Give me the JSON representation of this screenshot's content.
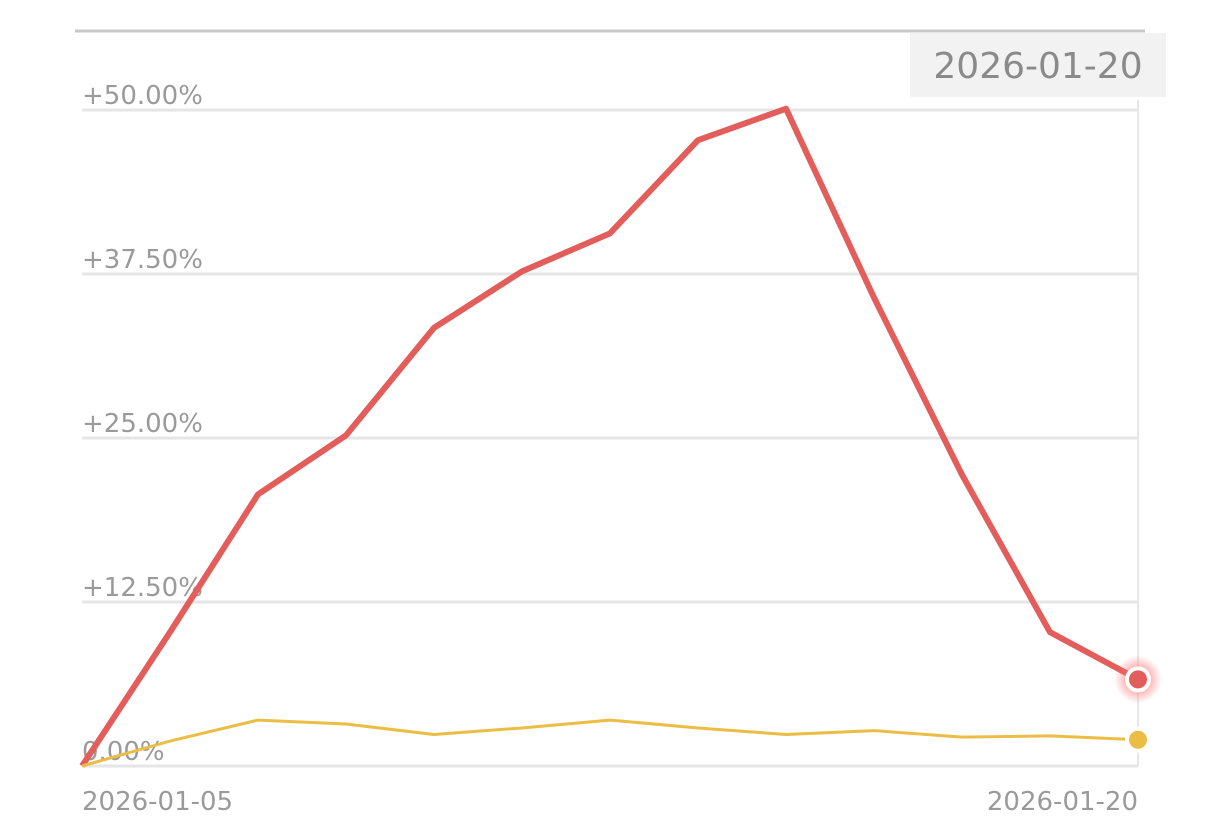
{
  "chart_data": {
    "type": "line",
    "tooltip_label": "2026-01-20",
    "categories": [
      "2026-01-05",
      null,
      null,
      null,
      null,
      null,
      null,
      null,
      null,
      null,
      null,
      null,
      "2026-01-20"
    ],
    "series": [
      {
        "color": "#e35d5b",
        "values": [
          0,
          10.2,
          20.7,
          25.2,
          33.4,
          37.7,
          40.6,
          47.7,
          50.1,
          35.7,
          22.2,
          10.2,
          6.6
        ]
      },
      {
        "color": "#ecbd45",
        "values": [
          0,
          1.9,
          3.5,
          3.2,
          2.4,
          2.9,
          3.5,
          2.9,
          2.4,
          2.7,
          2.2,
          2.3,
          2.0
        ]
      }
    ],
    "ylim": [
      0,
      50
    ],
    "yticks": [
      {
        "value": 0,
        "label": "0.00%"
      },
      {
        "value": 12.5,
        "label": "+12.50%"
      },
      {
        "value": 25,
        "label": "+25.00%"
      },
      {
        "value": 37.5,
        "label": "+37.50%"
      },
      {
        "value": 50,
        "label": "+50.00%"
      }
    ],
    "grid": true
  }
}
